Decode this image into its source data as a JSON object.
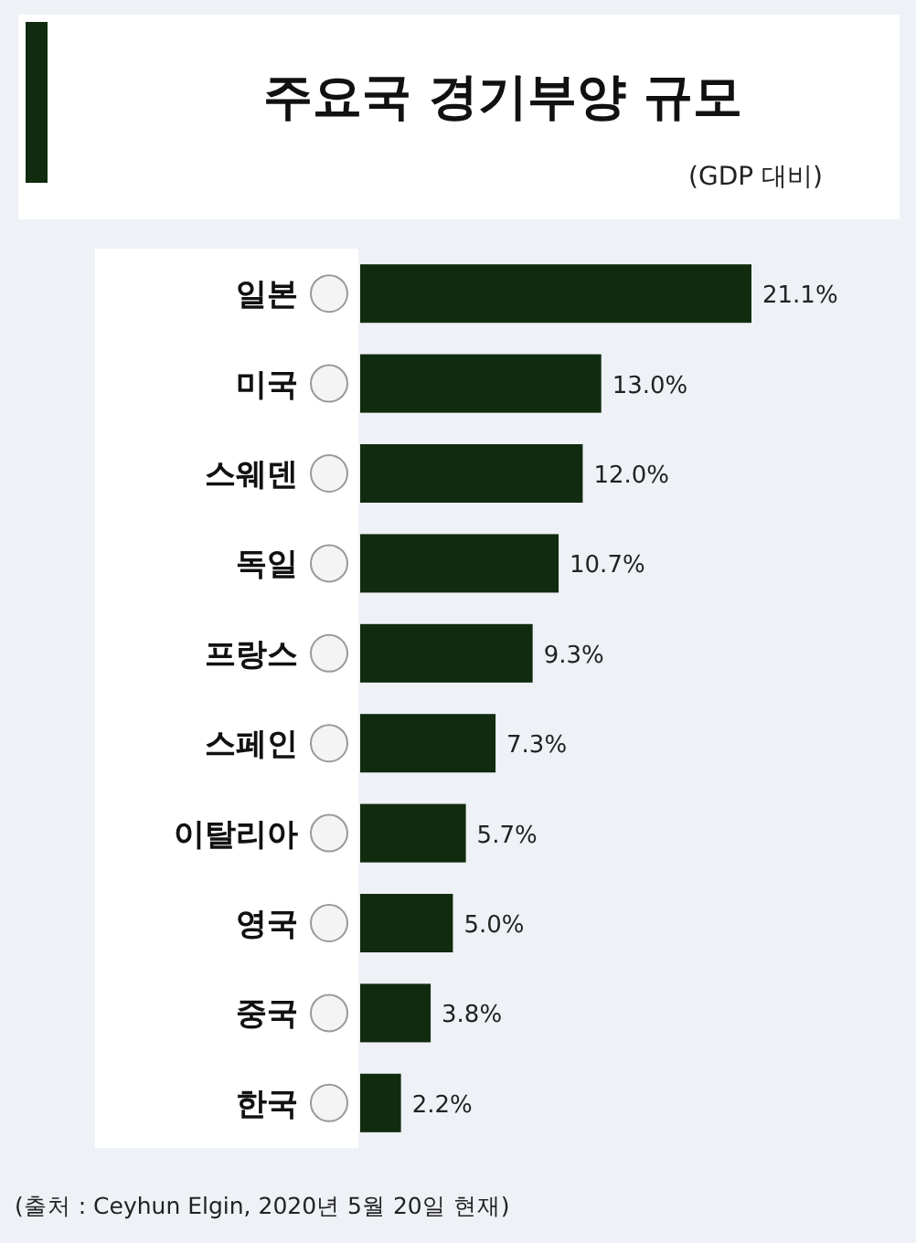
{
  "chart_data": {
    "type": "bar",
    "orientation": "horizontal",
    "title": "주요국 경기부양 규모",
    "subtitle": "(GDP 대비)",
    "categories": [
      "일본",
      "미국",
      "스웨덴",
      "독일",
      "프랑스",
      "스페인",
      "이탈리아",
      "영국",
      "중국",
      "한국"
    ],
    "values": [
      21.1,
      13.0,
      12.0,
      10.7,
      9.3,
      7.3,
      5.7,
      5.0,
      3.8,
      2.2
    ],
    "value_labels": [
      "21.1%",
      "13.0%",
      "12.0%",
      "10.7%",
      "9.3%",
      "7.3%",
      "5.7%",
      "5.0%",
      "3.8%",
      "2.2%"
    ],
    "color": "#112b0e",
    "annotations": [
      "(출처 :  Ceyhun Elgin, 2020년 5월 20일 현재)"
    ]
  }
}
